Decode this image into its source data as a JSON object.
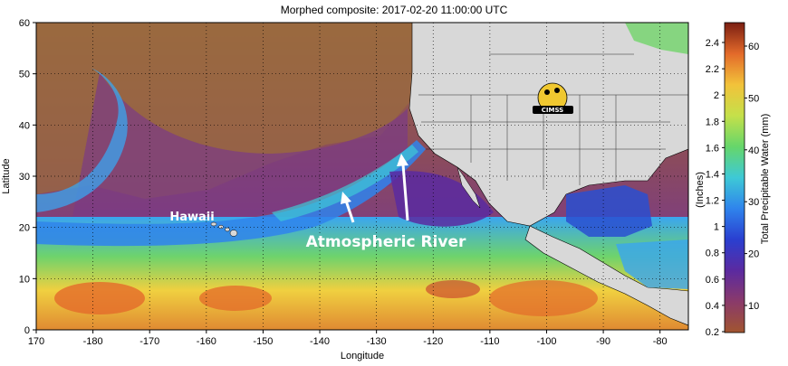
{
  "title": "Morphed composite: 2017-02-20 11:00:00 UTC",
  "map": {
    "xlabel": "Longitude",
    "ylabel": "Latitude",
    "lon_ticks": [
      "170",
      "-180",
      "-170",
      "-160",
      "-150",
      "-140",
      "-130",
      "-120",
      "-110",
      "-100",
      "-90",
      "-80"
    ],
    "lat_ticks": [
      "60",
      "50",
      "40",
      "30",
      "20",
      "10",
      "0"
    ],
    "lon_range": [
      170,
      285
    ],
    "lat_range": [
      0,
      60
    ],
    "gridlines": "dotted"
  },
  "annotations": {
    "hawaii": "Hawaii",
    "river": "Atmospheric River"
  },
  "logo": {
    "text": "CIMSS"
  },
  "colorbar": {
    "inches_label": "(Inches)",
    "mm_label": "Total Precipitable Water (mm)",
    "inch_ticks": [
      "2.4",
      "2.2",
      "2",
      "1.8",
      "1.6",
      "1.4",
      "1.2",
      "1",
      "0.8",
      "0.6",
      "0.4",
      "0.2"
    ],
    "mm_ticks": [
      "60",
      "50",
      "40",
      "30",
      "20",
      "10"
    ],
    "colors": [
      "#7a1e12",
      "#c7392b",
      "#e7892f",
      "#f2c73a",
      "#c7e04a",
      "#72d56a",
      "#3fd2b8",
      "#3aa5f0",
      "#2a4fd0",
      "#4d2aa8",
      "#7d2e8a",
      "#a15530"
    ]
  }
}
